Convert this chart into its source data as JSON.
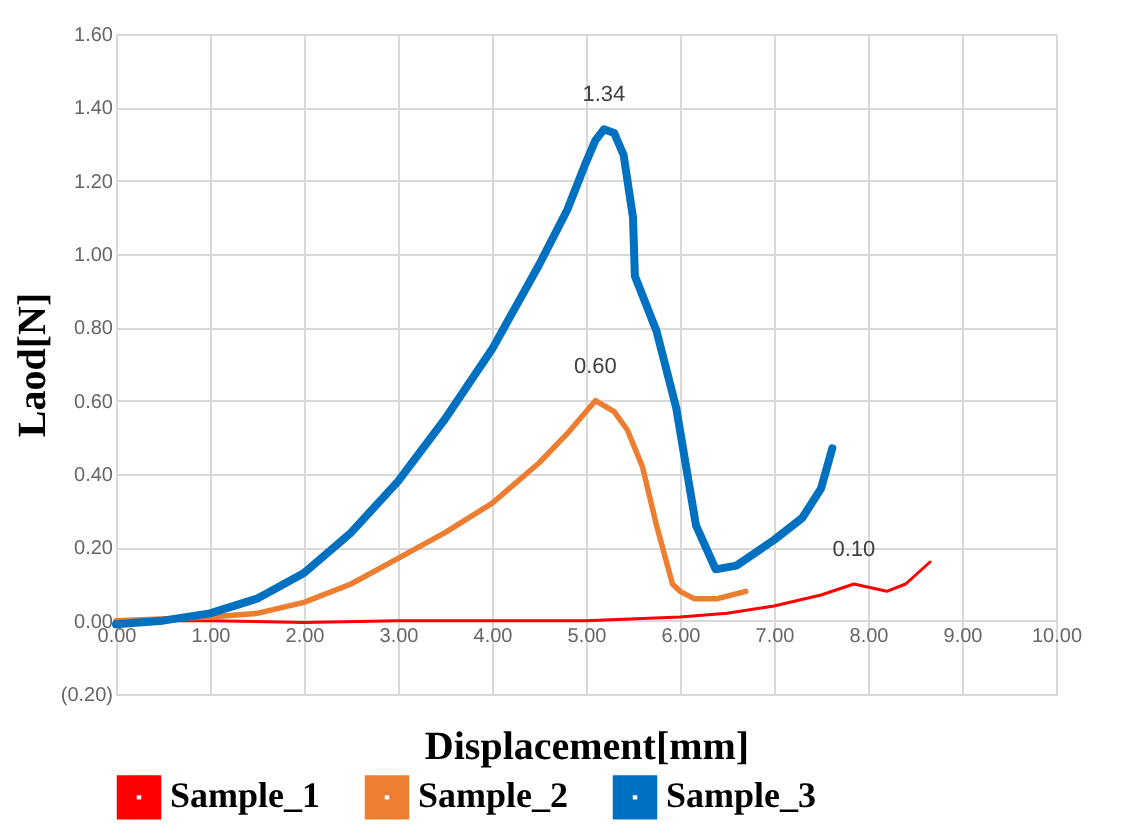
{
  "chart_data": {
    "type": "line",
    "xlabel": "Displacement[mm]",
    "ylabel": "Laod[N]",
    "xlim": [
      0,
      10
    ],
    "xticks": [
      {
        "value": 0,
        "label": "0.00"
      },
      {
        "value": 1,
        "label": "1.00"
      },
      {
        "value": 2,
        "label": "2.00"
      },
      {
        "value": 3,
        "label": "3.00"
      },
      {
        "value": 4,
        "label": "4.00"
      },
      {
        "value": 5,
        "label": "5.00"
      },
      {
        "value": 6,
        "label": "6.00"
      },
      {
        "value": 7,
        "label": "7.00"
      },
      {
        "value": 8,
        "label": "8.00"
      },
      {
        "value": 9,
        "label": "9.00"
      },
      {
        "value": 10,
        "label": "10.00"
      }
    ],
    "ylim": [
      -0.2,
      1.6
    ],
    "yticks": [
      {
        "value": -0.2,
        "label": "(0.20)"
      },
      {
        "value": 0,
        "label": "0.00"
      },
      {
        "value": 0.2,
        "label": "0.20"
      },
      {
        "value": 0.4,
        "label": "0.40"
      },
      {
        "value": 0.6,
        "label": "0.60"
      },
      {
        "value": 0.8,
        "label": "0.80"
      },
      {
        "value": 1.0,
        "label": "1.00"
      },
      {
        "value": 1.2,
        "label": "1.20"
      },
      {
        "value": 1.4,
        "label": "1.40"
      },
      {
        "value": 1.6,
        "label": "1.60"
      }
    ],
    "grid": true,
    "legend": "bottom",
    "marker": "none",
    "line_style": "solid",
    "series": [
      {
        "name": "Sample_1",
        "color": "#ff0000",
        "x": [
          0,
          1,
          2,
          3,
          4,
          5,
          6,
          6.5,
          7,
          7.5,
          7.85,
          8.2,
          8.4,
          8.66
        ],
        "values": [
          0,
          0,
          -0.005,
          0,
          0,
          0,
          0.01,
          0.02,
          0.04,
          0.07,
          0.1,
          0.08,
          0.1,
          0.16
        ]
      },
      {
        "name": "Sample_2",
        "color": "#ed7d31",
        "x": [
          0,
          1,
          1.5,
          2,
          2.5,
          3,
          3.5,
          4,
          4.5,
          4.8,
          5,
          5.1,
          5.3,
          5.44,
          5.6,
          5.75,
          5.92,
          6,
          6.15,
          6.4,
          6.7
        ],
        "values": [
          0,
          0.01,
          0.02,
          0.05,
          0.1,
          0.17,
          0.24,
          0.32,
          0.43,
          0.51,
          0.57,
          0.6,
          0.57,
          0.52,
          0.42,
          0.26,
          0.1,
          0.08,
          0.06,
          0.06,
          0.08
        ]
      },
      {
        "name": "Sample_3",
        "color": "#0070c0",
        "x": [
          0,
          0.5,
          1,
          1.5,
          2,
          2.5,
          3,
          3.5,
          4,
          4.5,
          4.8,
          5,
          5.1,
          5.19,
          5.3,
          5.4,
          5.5,
          5.52,
          5.75,
          5.96,
          6.17,
          6.38,
          6.6,
          7,
          7.3,
          7.5,
          7.62
        ],
        "values": [
          -0.01,
          0,
          0.02,
          0.06,
          0.13,
          0.24,
          0.38,
          0.55,
          0.74,
          0.97,
          1.12,
          1.25,
          1.31,
          1.34,
          1.33,
          1.27,
          1.1,
          0.94,
          0.79,
          0.58,
          0.26,
          0.14,
          0.15,
          0.22,
          0.28,
          0.36,
          0.47
        ]
      }
    ],
    "annotations": [
      {
        "text": "1.34",
        "x": 5.19,
        "y": 1.34
      },
      {
        "text": "0.60",
        "x": 5.1,
        "y": 0.6
      },
      {
        "text": "0.10",
        "x": 7.85,
        "y": 0.1
      }
    ]
  }
}
